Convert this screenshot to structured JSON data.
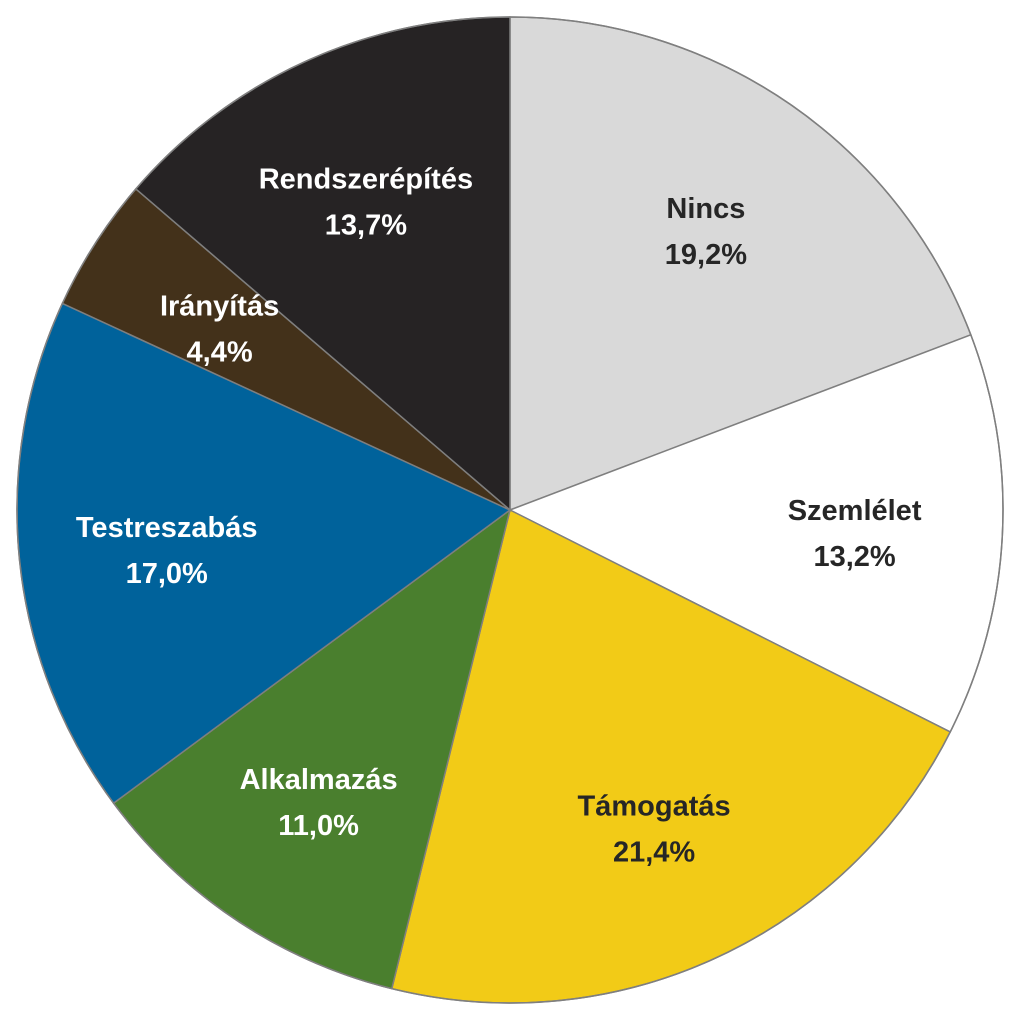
{
  "chart_data": {
    "type": "pie",
    "title": "",
    "legend": "none",
    "start_angle": "12 o'clock",
    "direction": "clockwise",
    "slices": [
      {
        "name": "Nincs",
        "value": 19.2,
        "label": "19,2%",
        "color": "#d9d9d9",
        "text_color": "#262626"
      },
      {
        "name": "Szemlélet",
        "value": 13.2,
        "label": "13,2%",
        "color": "#ffffff",
        "text_color": "#262626"
      },
      {
        "name": "Támogatás",
        "value": 21.4,
        "label": "21,4%",
        "color": "#f2cb17",
        "text_color": "#262626"
      },
      {
        "name": "Alkalmazás",
        "value": 11.0,
        "label": "11,0%",
        "color": "#4a7f2e",
        "text_color": "#ffffff"
      },
      {
        "name": "Testreszabás",
        "value": 17.0,
        "label": "17,0%",
        "color": "#00629b",
        "text_color": "#ffffff"
      },
      {
        "name": "Irányítás",
        "value": 4.4,
        "label": "4,4%",
        "color": "#43311a",
        "text_color": "#ffffff"
      },
      {
        "name": "Rendszerépítés",
        "value": 13.7,
        "label": "13,7%",
        "color": "#262324",
        "text_color": "#ffffff"
      }
    ]
  }
}
